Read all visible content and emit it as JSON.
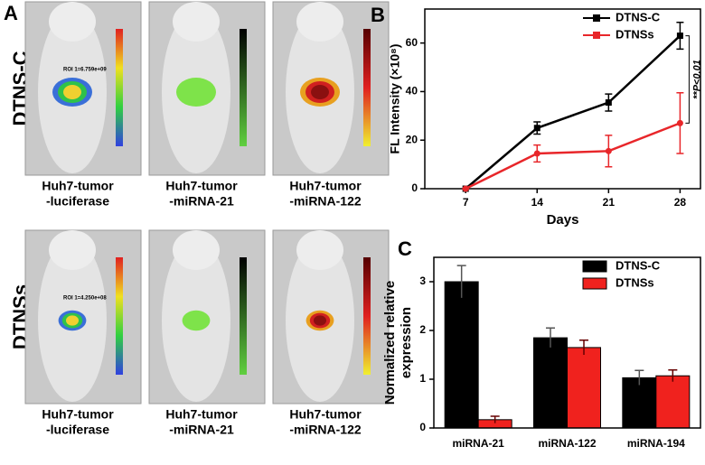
{
  "panel_a": {
    "label": "A",
    "rows": [
      {
        "name": "DTNS-C",
        "roi": "ROI 1=6.759e+09"
      },
      {
        "name": "DTNSs",
        "roi": "ROI 1=4.250e+08"
      }
    ],
    "columns": [
      [
        "Huh7-tumor",
        "-luciferase"
      ],
      [
        "Huh7-tumor",
        "-miRNA-21"
      ],
      [
        "Huh7-tumor",
        "-miRNA-122"
      ]
    ]
  },
  "chart_data": [
    {
      "type": "line",
      "panel_label": "B",
      "y_label": "FL Intensity (×10⁸)",
      "x_label": "Days",
      "annotation": "**P<0.01",
      "x": [
        7,
        14,
        21,
        28
      ],
      "xlim": [
        3,
        30
      ],
      "xticks": [
        7,
        14,
        21,
        28
      ],
      "ylim": [
        0,
        74
      ],
      "yticks": [
        0,
        20,
        40,
        60
      ],
      "legend": "top-right",
      "series": [
        {
          "name": "DTNS-C",
          "color": "#000000",
          "values": [
            0,
            25,
            35.5,
            63
          ],
          "errors": [
            0,
            2.5,
            3.5,
            5.5
          ]
        },
        {
          "name": "DTNSs",
          "color": "#e8262a",
          "values": [
            0,
            14.5,
            15.5,
            27
          ],
          "errors": [
            0,
            3.5,
            6.5,
            12.5
          ]
        }
      ]
    },
    {
      "type": "bar",
      "panel_label": "C",
      "y_label": [
        "Normalized relative",
        "expression"
      ],
      "categories": [
        "miRNA-21",
        "miRNA-122",
        "miRNA-194"
      ],
      "ylim": [
        0,
        3.5
      ],
      "yticks": [
        0,
        1,
        2,
        3
      ],
      "legend": "top-right",
      "series": [
        {
          "name": "DTNS-C",
          "color": "#000000",
          "values": [
            3.0,
            1.85,
            1.03
          ],
          "errors": [
            0.33,
            0.2,
            0.15
          ]
        },
        {
          "name": "DTNSs",
          "color": "#f0221e",
          "values": [
            0.17,
            1.65,
            1.07
          ],
          "errors": [
            0.07,
            0.15,
            0.12
          ]
        }
      ]
    }
  ]
}
